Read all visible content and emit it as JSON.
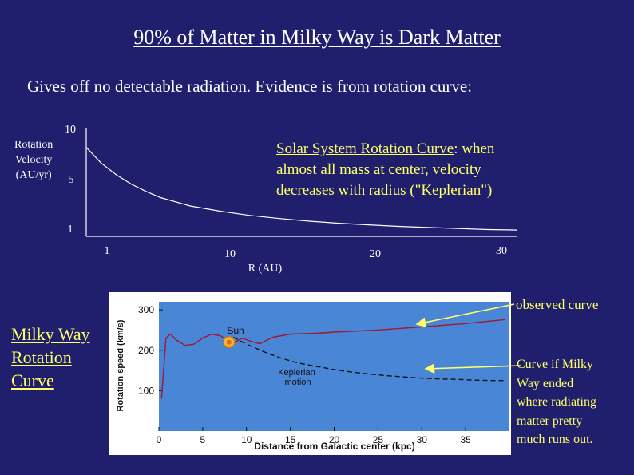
{
  "slide": {
    "title": "90% of Matter in Milky Way is Dark Matter",
    "subtitle": "Gives off no detectable radiation.  Evidence is from rotation curve:",
    "milky_way_label": [
      "Milky Way",
      "Rotation",
      "Curve"
    ],
    "annotation_kepler_underlined": "Solar System Rotation Curve",
    "annotation_kepler_rest": ": when",
    "annotation_kepler_lines": [
      "almost all mass at center, velocity",
      "decreases with radius (\"Keplerian\")"
    ],
    "annotation_observed": "observed curve",
    "annotation_curve_if": [
      "Curve if Milky",
      "Way ended",
      "where radiating",
      "matter pretty",
      "much runs out."
    ],
    "colors": {
      "background": "#1f1f6e",
      "annotation": "#ffff66",
      "chart_panel": "#ffffff",
      "plot_area": "#4a86d6",
      "observed_line": "#a0182e"
    }
  },
  "chart_data": [
    {
      "type": "line",
      "title": "",
      "xlabel": "R   (AU)",
      "ylabel_lines": [
        "Rotation",
        "Velocity",
        "(AU/yr)"
      ],
      "x_ticks": [
        1,
        10,
        20,
        30
      ],
      "y_ticks": [
        1,
        5,
        10
      ],
      "xlim": [
        1,
        30
      ],
      "ylim": [
        1,
        10
      ],
      "grid": false,
      "series": [
        {
          "x": [
            1,
            2,
            3,
            4,
            5,
            6,
            8,
            10,
            12,
            14,
            16,
            18,
            20,
            22,
            24,
            26,
            28,
            30
          ],
          "y": [
            9.5,
            8.0,
            6.9,
            6.0,
            5.3,
            4.7,
            3.9,
            3.4,
            3.0,
            2.7,
            2.45,
            2.25,
            2.1,
            1.95,
            1.85,
            1.75,
            1.65,
            1.6
          ]
        }
      ]
    },
    {
      "type": "line",
      "title": "",
      "xlabel": "Distance from Galactic center (kpc)",
      "ylabel": "Rotation speed (km/s)",
      "x_ticks": [
        0,
        5,
        10,
        15,
        20,
        25,
        30,
        35
      ],
      "y_ticks": [
        100,
        200,
        300
      ],
      "xlim": [
        0,
        40
      ],
      "ylim": [
        0,
        320
      ],
      "grid": false,
      "annotations": [
        "Sun",
        "Keplerian\nmotion"
      ],
      "sun_point": {
        "x": 8,
        "y": 220
      },
      "series": [
        {
          "style": "solid",
          "x": [
            0.3,
            0.8,
            1.3,
            2,
            3,
            4,
            5,
            6,
            7,
            7.8,
            8.5,
            9.5,
            10.5,
            11.5,
            13,
            15,
            18,
            20,
            25,
            30,
            35,
            39.5
          ],
          "y": [
            80,
            230,
            240,
            225,
            212,
            215,
            230,
            240,
            236,
            225,
            218,
            230,
            222,
            216,
            232,
            240,
            242,
            245,
            250,
            258,
            266,
            276
          ]
        },
        {
          "style": "dashed",
          "x": [
            8.5,
            10,
            12,
            14,
            16,
            18,
            20,
            22,
            24,
            26,
            28,
            30,
            32,
            34,
            36,
            38,
            39.5
          ],
          "y": [
            232,
            215,
            196,
            180,
            168,
            160,
            152,
            146,
            141,
            137,
            134,
            131,
            129,
            128,
            126,
            125,
            125
          ]
        }
      ]
    }
  ]
}
